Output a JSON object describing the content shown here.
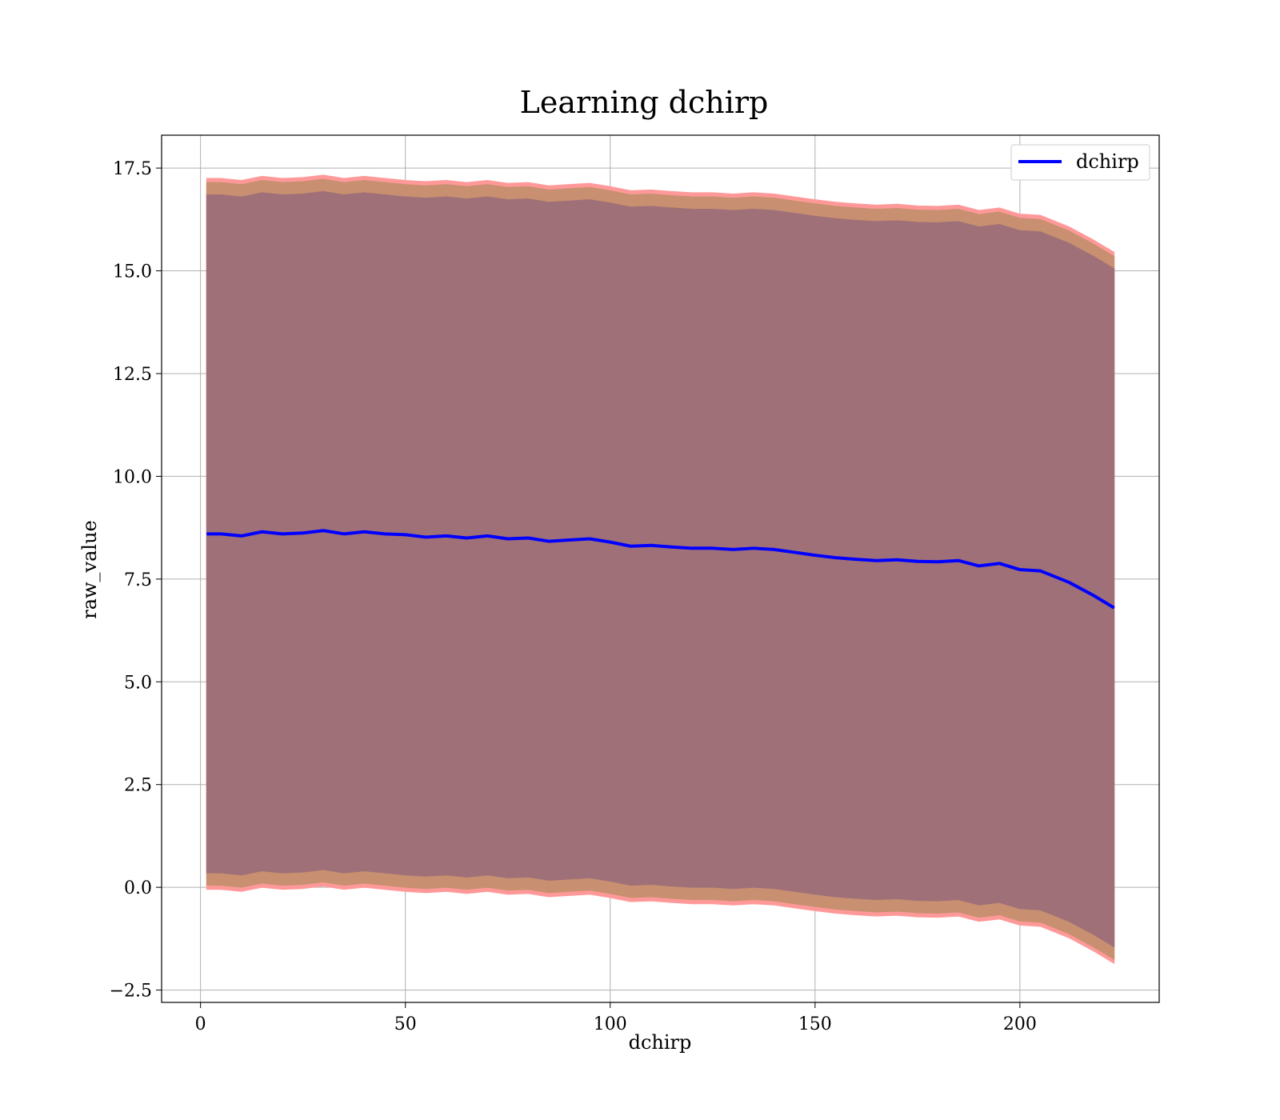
{
  "chart_data": {
    "type": "line",
    "title": "Learning dchirp",
    "xlabel": "dchirp",
    "ylabel": "raw_value",
    "xlim": [
      -9.5,
      234
    ],
    "ylim": [
      -2.8,
      18.3
    ],
    "grid": true,
    "legend_position": "top-right",
    "x_ticks": [
      0,
      50,
      100,
      150,
      200
    ],
    "x_tick_labels": [
      "0",
      "50",
      "100",
      "150",
      "200"
    ],
    "y_ticks": [
      -2.5,
      0.0,
      2.5,
      5.0,
      7.5,
      10.0,
      12.5,
      15.0,
      17.5
    ],
    "y_tick_labels": [
      "−2.5",
      "0.0",
      "2.5",
      "5.0",
      "7.5",
      "10.0",
      "12.5",
      "15.0",
      "17.5"
    ],
    "series": [
      {
        "name": "dchirp",
        "color": "#0000ff",
        "x": [
          1.5,
          5,
          10,
          15,
          20,
          25,
          30,
          35,
          40,
          45,
          50,
          55,
          60,
          65,
          70,
          75,
          80,
          85,
          90,
          95,
          100,
          105,
          110,
          115,
          120,
          125,
          130,
          135,
          140,
          145,
          150,
          155,
          160,
          165,
          170,
          175,
          180,
          185,
          190,
          195,
          200,
          205,
          212,
          218,
          223
        ],
        "y": [
          8.6,
          8.6,
          8.55,
          8.65,
          8.6,
          8.62,
          8.68,
          8.6,
          8.65,
          8.6,
          8.58,
          8.52,
          8.55,
          8.5,
          8.55,
          8.48,
          8.5,
          8.42,
          8.45,
          8.48,
          8.4,
          8.3,
          8.32,
          8.28,
          8.25,
          8.25,
          8.22,
          8.25,
          8.22,
          8.15,
          8.08,
          8.02,
          7.98,
          7.95,
          7.97,
          7.93,
          7.92,
          7.95,
          7.82,
          7.88,
          7.73,
          7.7,
          7.42,
          7.1,
          6.8
        ]
      }
    ],
    "bands": [
      {
        "color": "#ff9999",
        "upper": [
          17.25,
          17.25,
          17.2,
          17.3,
          17.25,
          17.27,
          17.33,
          17.25,
          17.3,
          17.25,
          17.2,
          17.17,
          17.2,
          17.15,
          17.2,
          17.13,
          17.15,
          17.07,
          17.1,
          17.13,
          17.05,
          16.95,
          16.97,
          16.93,
          16.9,
          16.9,
          16.87,
          16.9,
          16.87,
          16.8,
          16.73,
          16.67,
          16.63,
          16.6,
          16.62,
          16.58,
          16.57,
          16.6,
          16.47,
          16.53,
          16.38,
          16.35,
          16.07,
          15.75,
          15.45
        ],
        "lower": [
          -0.05,
          -0.05,
          -0.1,
          0.0,
          -0.05,
          -0.03,
          0.03,
          -0.05,
          0.0,
          -0.05,
          -0.1,
          -0.13,
          -0.1,
          -0.15,
          -0.1,
          -0.17,
          -0.15,
          -0.23,
          -0.2,
          -0.17,
          -0.25,
          -0.35,
          -0.33,
          -0.37,
          -0.4,
          -0.4,
          -0.43,
          -0.4,
          -0.43,
          -0.5,
          -0.57,
          -0.63,
          -0.67,
          -0.7,
          -0.68,
          -0.72,
          -0.73,
          -0.7,
          -0.83,
          -0.77,
          -0.92,
          -0.95,
          -1.23,
          -1.55,
          -1.85
        ]
      },
      {
        "color": "#c89070",
        "upper": [
          17.15,
          17.15,
          17.1,
          17.2,
          17.15,
          17.17,
          17.23,
          17.15,
          17.2,
          17.15,
          17.1,
          17.07,
          17.1,
          17.05,
          17.1,
          17.03,
          17.05,
          16.97,
          17.0,
          17.03,
          16.95,
          16.85,
          16.87,
          16.83,
          16.8,
          16.8,
          16.77,
          16.8,
          16.77,
          16.7,
          16.63,
          16.57,
          16.53,
          16.5,
          16.52,
          16.48,
          16.47,
          16.5,
          16.37,
          16.43,
          16.28,
          16.25,
          15.97,
          15.65,
          15.35
        ],
        "lower": [
          0.05,
          0.05,
          0.0,
          0.1,
          0.05,
          0.07,
          0.13,
          0.05,
          0.1,
          0.05,
          0.0,
          -0.03,
          0.0,
          -0.05,
          0.0,
          -0.07,
          -0.05,
          -0.13,
          -0.1,
          -0.07,
          -0.15,
          -0.25,
          -0.23,
          -0.27,
          -0.3,
          -0.3,
          -0.33,
          -0.3,
          -0.33,
          -0.4,
          -0.47,
          -0.53,
          -0.57,
          -0.6,
          -0.58,
          -0.62,
          -0.63,
          -0.6,
          -0.73,
          -0.67,
          -0.82,
          -0.85,
          -1.13,
          -1.45,
          -1.75
        ]
      },
      {
        "color": "#a07078",
        "upper": [
          16.85,
          16.85,
          16.8,
          16.9,
          16.85,
          16.87,
          16.93,
          16.85,
          16.9,
          16.85,
          16.8,
          16.77,
          16.8,
          16.75,
          16.8,
          16.73,
          16.75,
          16.67,
          16.7,
          16.73,
          16.65,
          16.55,
          16.57,
          16.53,
          16.5,
          16.5,
          16.47,
          16.5,
          16.47,
          16.4,
          16.33,
          16.27,
          16.23,
          16.2,
          16.22,
          16.18,
          16.17,
          16.2,
          16.07,
          16.13,
          15.98,
          15.95,
          15.67,
          15.35,
          15.05
        ],
        "lower": [
          0.35,
          0.35,
          0.3,
          0.4,
          0.35,
          0.37,
          0.43,
          0.35,
          0.4,
          0.35,
          0.3,
          0.27,
          0.3,
          0.25,
          0.3,
          0.23,
          0.25,
          0.17,
          0.2,
          0.23,
          0.15,
          0.05,
          0.07,
          0.03,
          0.0,
          0.0,
          -0.03,
          0.0,
          -0.03,
          -0.1,
          -0.17,
          -0.23,
          -0.27,
          -0.3,
          -0.28,
          -0.32,
          -0.33,
          -0.3,
          -0.43,
          -0.37,
          -0.52,
          -0.55,
          -0.83,
          -1.15,
          -1.45
        ]
      }
    ]
  }
}
